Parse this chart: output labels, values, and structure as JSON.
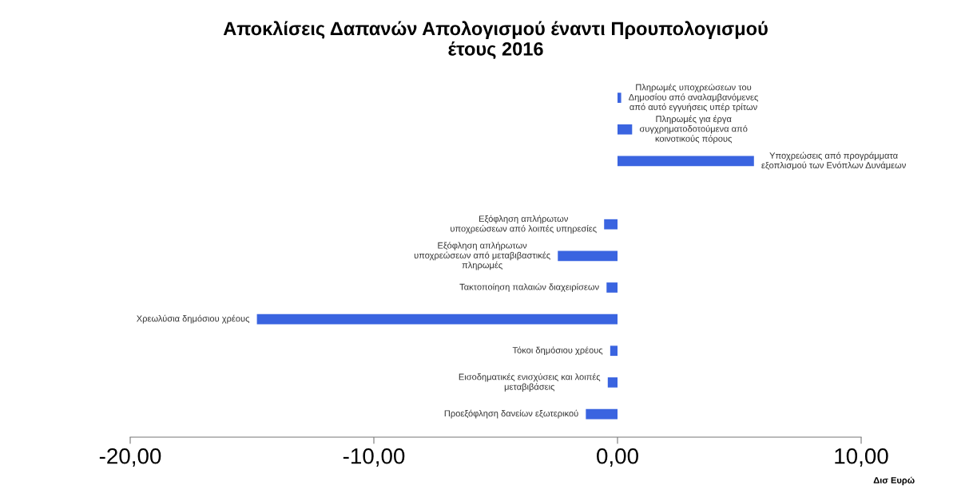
{
  "chart_data": {
    "type": "bar",
    "orientation": "horizontal",
    "title": "Αποκλίσεις Δαπανών Απολογισμού έναντι Προυπολογισμού\nέτους 2016",
    "xlabel": "Δισ Ευρώ",
    "categories": [
      "Πληρωμές υποχρεώσεων του\nΔημοσίου από αναλαμβανόμενες\nαπό αυτό εγγυήσεις υπέρ τρίτων",
      "Πληρωμές για έργα\nσυγχρηματοδοτούμενα από\nκοινοτικούς πόρους",
      "Υποχρεώσεις από προγράμματα\nεξοπλισμού των Ενόπλων Δυνάμεων",
      null,
      "Εξόφληση απλήρωτων\nυποχρεώσεων από λοιπές υπηρεσίες",
      "Εξόφληση απλήρωτων\nυποχρεώσεων από μεταβιβαστικές\nπληρωμές",
      "Τακτοποίηση παλαιών διαχειρίσεων",
      "Χρεωλύσια δημόσιου χρέους",
      "Τόκοι δημόσιου χρέους",
      "Εισοδηματικές ενισχύσεις και λοιπές\nμεταβιβάσεις",
      "Προεξόφληση δανείων εξωτερικού"
    ],
    "values": [
      0.15,
      0.6,
      5.6,
      null,
      -0.55,
      -2.45,
      -0.45,
      -14.8,
      -0.3,
      -0.4,
      -1.3
    ],
    "color": "#3a64e0",
    "xlim": [
      -20,
      10
    ],
    "xticks": [
      {
        "value": -20,
        "label": "-20,00"
      },
      {
        "value": -10,
        "label": "-10,00"
      },
      {
        "value": 0,
        "label": "0,00"
      },
      {
        "value": 10,
        "label": "10,00"
      }
    ],
    "tick_labels": "x",
    "grid": false,
    "legend": false
  }
}
